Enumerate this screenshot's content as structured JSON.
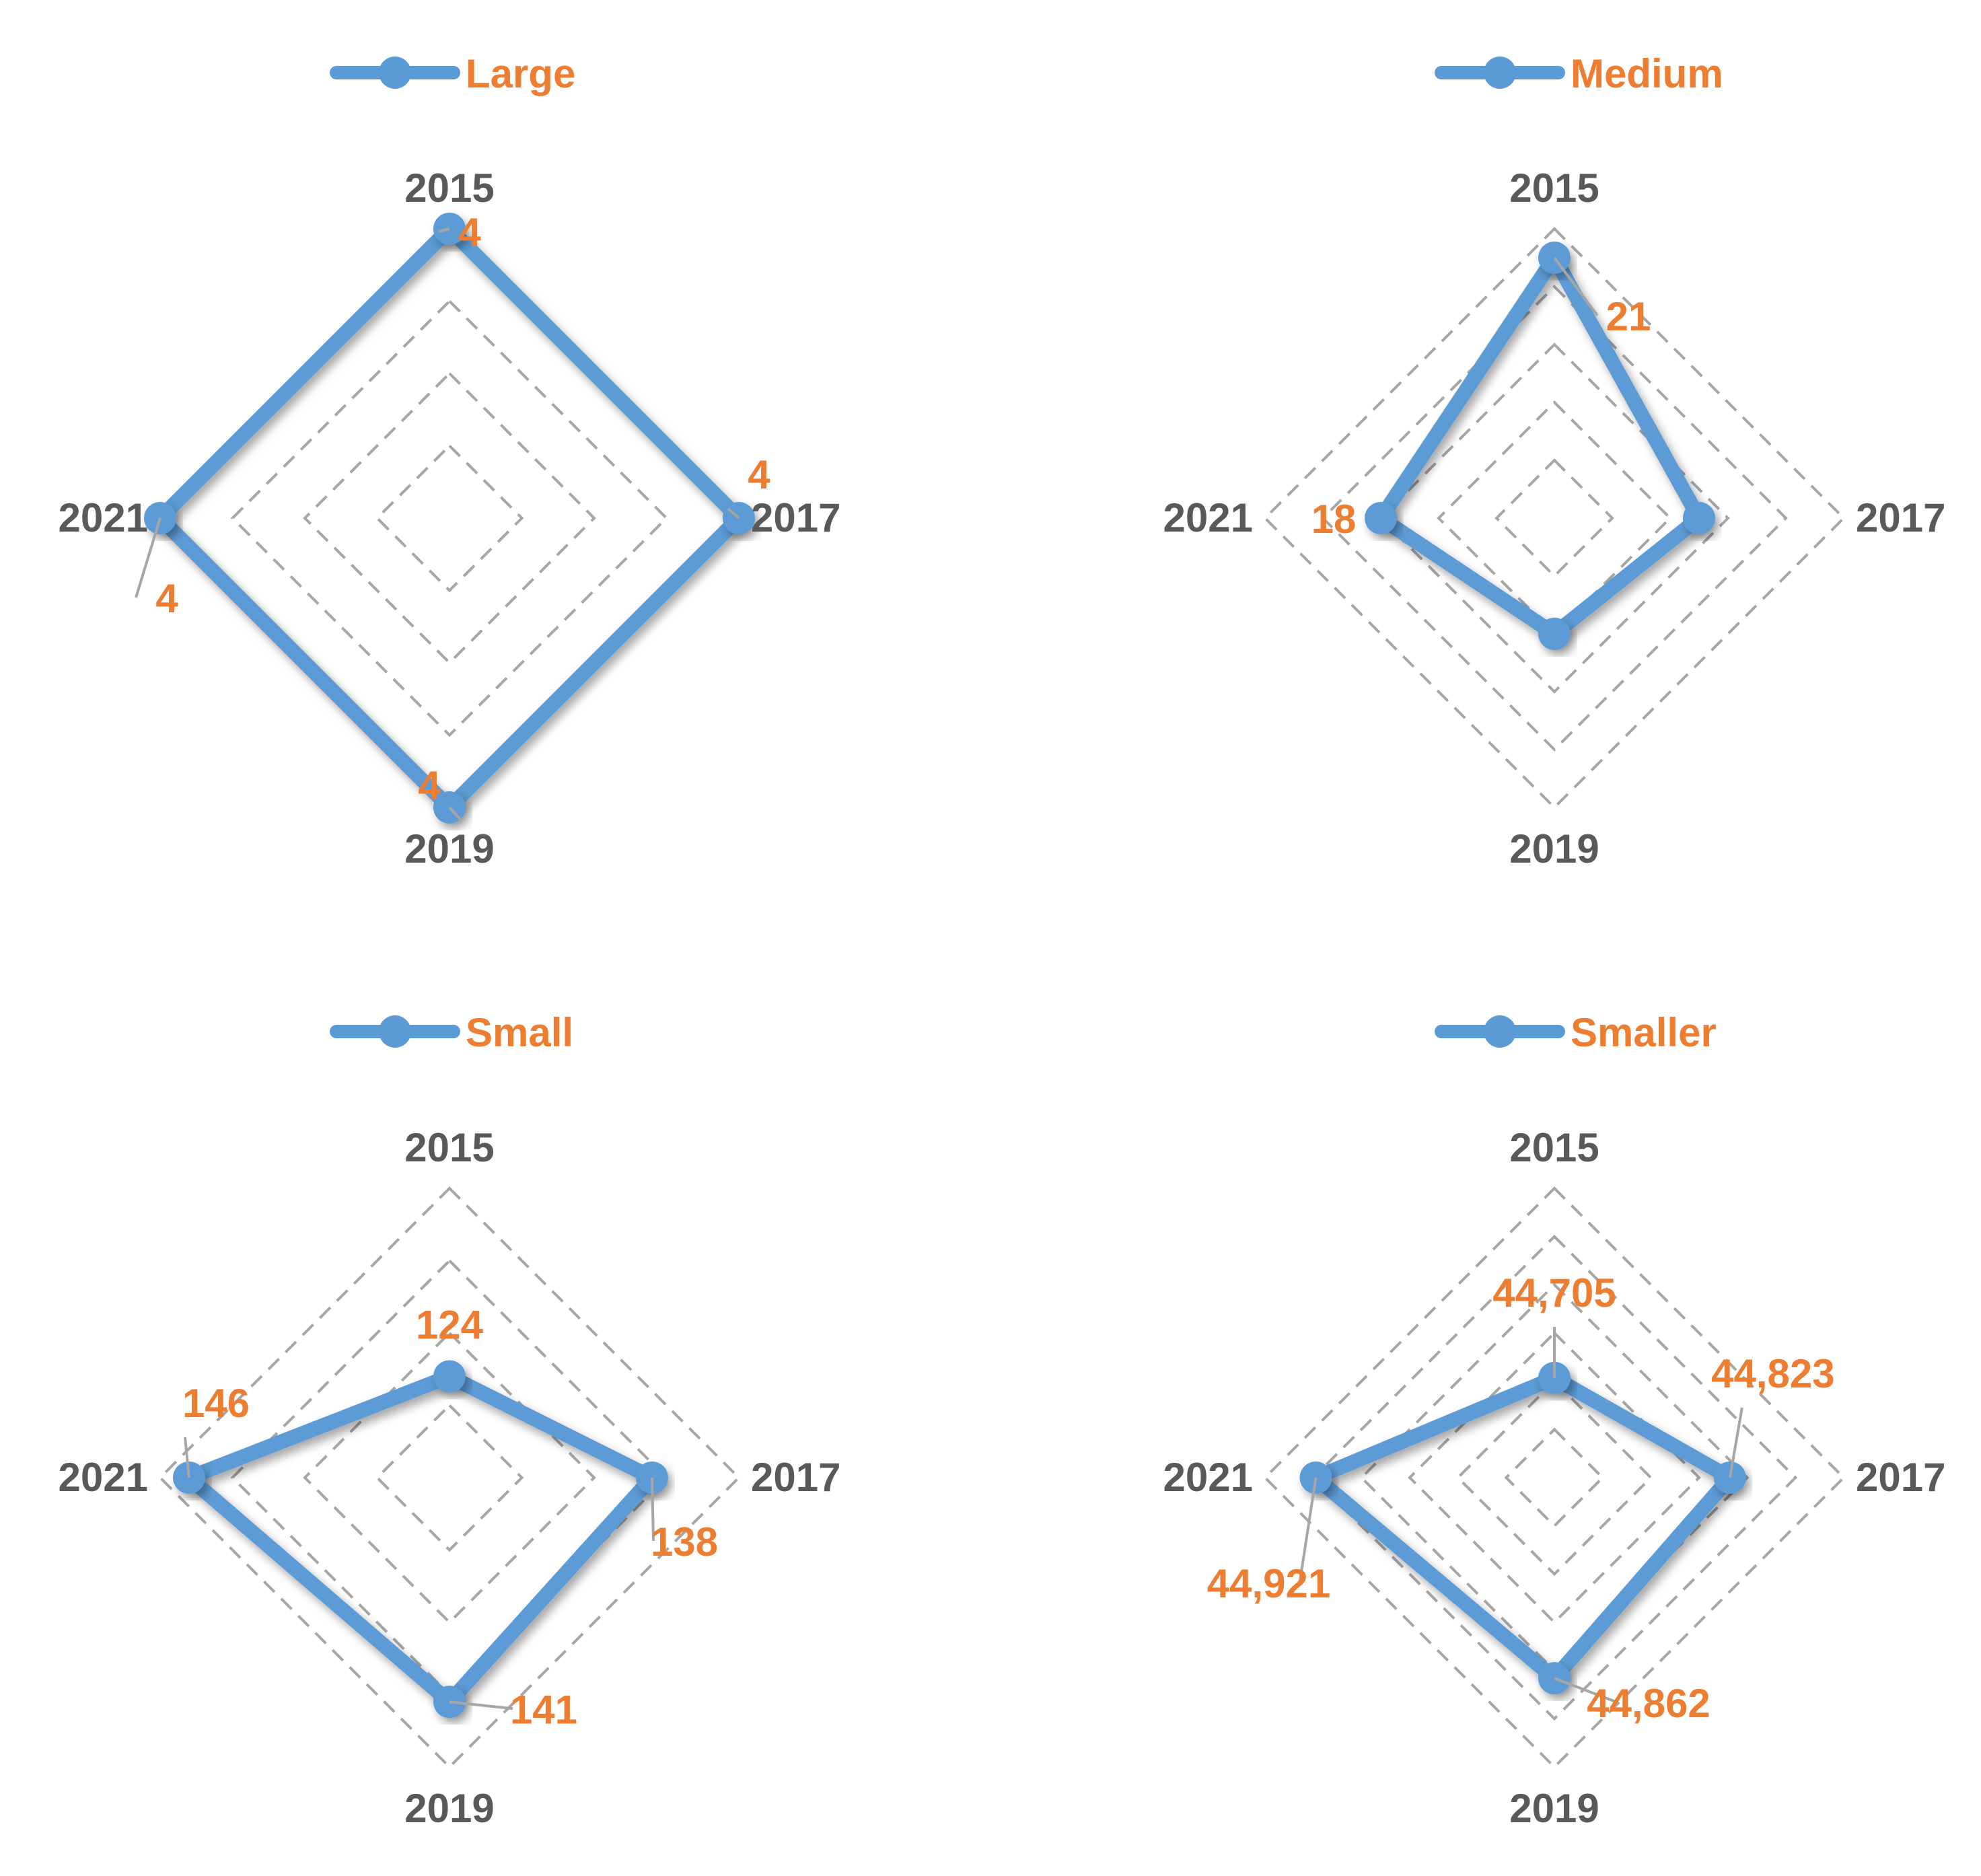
{
  "colors": {
    "series_line": "#5B9BD5",
    "value_label": "#ED7D31",
    "axis_label": "#595959",
    "grid": "#A6A6A6",
    "leader": "#A6A6A6"
  },
  "chart_data": [
    {
      "type": "radar",
      "legend": "Large",
      "categories": [
        "2015",
        "2017",
        "2019",
        "2021"
      ],
      "values": [
        4,
        4,
        4,
        4
      ],
      "value_labels": [
        "4",
        "4",
        "4",
        "4"
      ],
      "rlim": [
        0,
        4
      ],
      "grid_levels": 4,
      "legend_position": "top"
    },
    {
      "type": "radar",
      "legend": "Medium",
      "categories": [
        "2015",
        "2017",
        "2019",
        "2021"
      ],
      "values": [
        21,
        17,
        16,
        18
      ],
      "value_labels": [
        "21",
        "",
        "",
        "18"
      ],
      "rlim": [
        12,
        22
      ],
      "grid_levels": 5,
      "legend_position": "top"
    },
    {
      "type": "radar",
      "legend": "Small",
      "categories": [
        "2015",
        "2017",
        "2019",
        "2021"
      ],
      "values": [
        124,
        138,
        141,
        146
      ],
      "value_labels": [
        "124",
        "138",
        "141",
        "146"
      ],
      "rlim": [
        110,
        150
      ],
      "grid_levels": 4,
      "legend_position": "top"
    },
    {
      "type": "radar",
      "legend": "Smaller",
      "categories": [
        "2015",
        "2017",
        "2019",
        "2021"
      ],
      "values": [
        44705,
        44823,
        44862,
        44921
      ],
      "value_labels": [
        "44,705",
        "44,823",
        "44,862",
        "44,921"
      ],
      "rlim": [
        44550,
        45000
      ],
      "grid_levels": 6,
      "legend_position": "top"
    }
  ]
}
